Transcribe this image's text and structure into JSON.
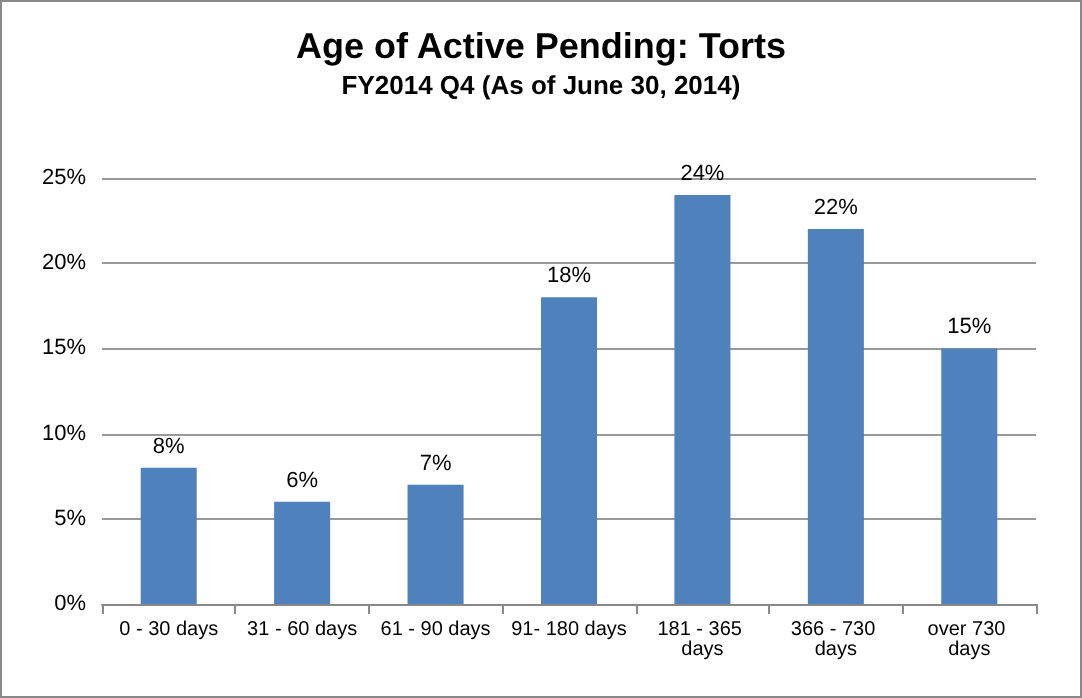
{
  "chart_data": {
    "type": "bar",
    "title": "Age of Active Pending: Torts",
    "subtitle": "FY2014 Q4 (As of June 30, 2014)",
    "categories": [
      "0 - 30 days",
      "31 - 60 days",
      "61 - 90 days",
      "91- 180 days",
      "181 - 365 days",
      "366 - 730 days",
      "over 730 days"
    ],
    "values": [
      8,
      6,
      7,
      18,
      24,
      22,
      15
    ],
    "value_labels": [
      "8%",
      "6%",
      "7%",
      "18%",
      "24%",
      "22%",
      "15%"
    ],
    "color": "#4f81bd",
    "ylim": [
      0,
      25
    ],
    "yticks": [
      {
        "value": 0,
        "label": "0%"
      },
      {
        "value": 5,
        "label": "5%"
      },
      {
        "value": 10,
        "label": "10%"
      },
      {
        "value": 15,
        "label": "15%"
      },
      {
        "value": 20,
        "label": "20%"
      },
      {
        "value": 25,
        "label": "25%"
      }
    ],
    "grid": "y"
  }
}
